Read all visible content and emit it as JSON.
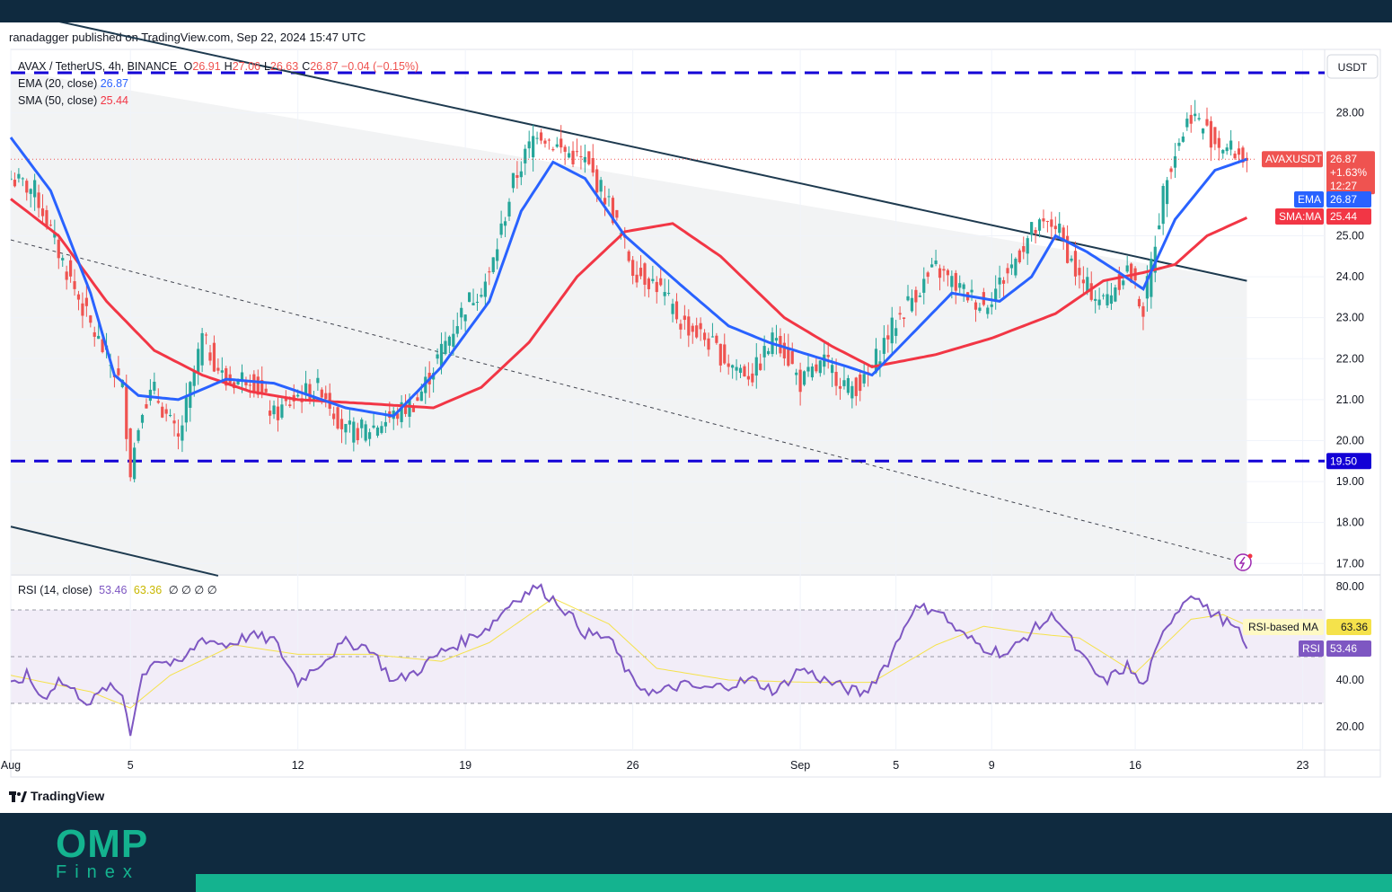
{
  "byline": "ranadagger published on TradingView.com, Sep 22, 2024 15:47 UTC",
  "brand": {
    "tv": "TradingView",
    "omp": "OMP",
    "finex": "Finex"
  },
  "legend": {
    "symbol": "AVAX / TetherUS, 4h, BINANCE",
    "ohlc": [
      {
        "k": "O",
        "v": "26.91"
      },
      {
        "k": "H",
        "v": "27.06"
      },
      {
        "k": "L",
        "v": "26.63"
      },
      {
        "k": "C",
        "v": "26.87"
      }
    ],
    "change": "−0.04 (−0.15%)",
    "ema_label": "EMA (20, close)",
    "ema_value": "26.87",
    "sma_label": "SMA (50, close)",
    "sma_value": "25.44",
    "rsi_label": "RSI (14, close)",
    "rsi_value": "53.46",
    "rsi_ma_value": "63.36",
    "rsi_extra": "∅ ∅ ∅ ∅"
  },
  "axis": {
    "currency": "USDT"
  },
  "badges": {
    "symbol": "AVAXUSDT",
    "price": "26.87",
    "pct": "+1.63%",
    "timer": "12:27",
    "ema_tag": "EMA",
    "ema_val": "26.87",
    "sma_tag": "SMA:MA",
    "sma_val": "25.44",
    "level": "19.50",
    "rsi_ma_tag": "RSI-based MA",
    "rsi_ma_val": "63.36",
    "rsi_tag": "RSI",
    "rsi_val": "53.46"
  },
  "colors": {
    "ema": "#2962ff",
    "sma": "#f23645",
    "rsi": "#7e57c2",
    "rsi_ma": "#f5e24b",
    "bull": "#26a69a",
    "bear": "#ef5350",
    "level": "#1300d6"
  },
  "chart_data": {
    "type": "candlestick",
    "price_ticks": [
      17,
      18,
      19,
      20,
      21,
      22,
      23,
      24,
      25,
      28
    ],
    "price_tick_labels": [
      "17.00",
      "18.00",
      "19.00",
      "20.00",
      "21.00",
      "22.00",
      "23.00",
      "24.00",
      "25.00",
      "28.00"
    ],
    "rsi_ticks": [
      20,
      40,
      60,
      80
    ],
    "rsi_tick_labels": [
      "20.00",
      "40.00",
      "",
      "80.00"
    ],
    "x_labels": [
      "Aug",
      "5",
      "12",
      "19",
      "26",
      "Sep",
      "5",
      "9",
      "16",
      "23"
    ],
    "horizontal_levels": [
      28.98,
      19.5
    ],
    "rsi_bands": [
      30,
      70
    ],
    "close_anchors": [
      [
        0,
        26.4
      ],
      [
        6,
        26.1
      ],
      [
        12,
        24.6
      ],
      [
        20,
        22.8
      ],
      [
        28,
        21.3
      ],
      [
        30,
        19.3
      ],
      [
        33,
        20.9
      ],
      [
        36,
        21.2
      ],
      [
        42,
        20.0
      ],
      [
        48,
        22.5
      ],
      [
        54,
        21.4
      ],
      [
        60,
        21.6
      ],
      [
        66,
        20.6
      ],
      [
        72,
        21.1
      ],
      [
        78,
        21.3
      ],
      [
        84,
        20.2
      ],
      [
        90,
        20.3
      ],
      [
        96,
        20.6
      ],
      [
        102,
        21.0
      ],
      [
        108,
        22.2
      ],
      [
        114,
        23.3
      ],
      [
        120,
        24.0
      ],
      [
        126,
        26.3
      ],
      [
        132,
        27.6
      ],
      [
        138,
        27.1
      ],
      [
        144,
        26.8
      ],
      [
        150,
        25.8
      ],
      [
        156,
        24.2
      ],
      [
        162,
        23.8
      ],
      [
        168,
        22.9
      ],
      [
        174,
        22.5
      ],
      [
        180,
        21.9
      ],
      [
        186,
        21.6
      ],
      [
        192,
        22.6
      ],
      [
        198,
        21.4
      ],
      [
        204,
        21.9
      ],
      [
        210,
        21.3
      ],
      [
        214,
        21.4
      ],
      [
        220,
        22.6
      ],
      [
        226,
        23.5
      ],
      [
        232,
        24.2
      ],
      [
        238,
        23.7
      ],
      [
        244,
        23.3
      ],
      [
        250,
        24.1
      ],
      [
        256,
        25.1
      ],
      [
        262,
        25.3
      ],
      [
        268,
        23.9
      ],
      [
        274,
        23.4
      ],
      [
        280,
        24.2
      ],
      [
        284,
        23.2
      ],
      [
        290,
        26.6
      ],
      [
        296,
        28.0
      ],
      [
        302,
        27.3
      ],
      [
        306,
        27.1
      ],
      [
        310,
        26.87
      ]
    ],
    "ema_anchors": [
      [
        0,
        27.4
      ],
      [
        10,
        26.1
      ],
      [
        20,
        23.6
      ],
      [
        26,
        21.6
      ],
      [
        32,
        21.1
      ],
      [
        42,
        21.0
      ],
      [
        54,
        21.5
      ],
      [
        66,
        21.4
      ],
      [
        84,
        20.8
      ],
      [
        96,
        20.6
      ],
      [
        108,
        21.8
      ],
      [
        120,
        23.4
      ],
      [
        128,
        25.6
      ],
      [
        136,
        26.8
      ],
      [
        144,
        26.4
      ],
      [
        154,
        25.0
      ],
      [
        168,
        23.8
      ],
      [
        180,
        22.8
      ],
      [
        190,
        22.4
      ],
      [
        200,
        22.1
      ],
      [
        210,
        21.8
      ],
      [
        216,
        21.6
      ],
      [
        226,
        22.6
      ],
      [
        236,
        23.6
      ],
      [
        248,
        23.4
      ],
      [
        256,
        24.0
      ],
      [
        262,
        25.0
      ],
      [
        270,
        24.6
      ],
      [
        278,
        24.1
      ],
      [
        284,
        23.7
      ],
      [
        292,
        25.4
      ],
      [
        302,
        26.6
      ],
      [
        310,
        26.87
      ]
    ],
    "sma_anchors": [
      [
        0,
        25.9
      ],
      [
        12,
        25.0
      ],
      [
        24,
        23.4
      ],
      [
        36,
        22.2
      ],
      [
        48,
        21.6
      ],
      [
        60,
        21.2
      ],
      [
        72,
        21.0
      ],
      [
        90,
        20.9
      ],
      [
        106,
        20.8
      ],
      [
        118,
        21.3
      ],
      [
        130,
        22.4
      ],
      [
        142,
        24.0
      ],
      [
        154,
        25.1
      ],
      [
        166,
        25.3
      ],
      [
        178,
        24.5
      ],
      [
        194,
        23.0
      ],
      [
        206,
        22.3
      ],
      [
        216,
        21.8
      ],
      [
        232,
        22.1
      ],
      [
        246,
        22.5
      ],
      [
        262,
        23.1
      ],
      [
        274,
        23.9
      ],
      [
        284,
        24.1
      ],
      [
        292,
        24.3
      ],
      [
        300,
        25.0
      ],
      [
        310,
        25.44
      ]
    ],
    "rsi_anchors": [
      [
        0,
        37
      ],
      [
        4,
        42
      ],
      [
        8,
        32
      ],
      [
        12,
        40
      ],
      [
        16,
        35
      ],
      [
        20,
        30
      ],
      [
        24,
        37
      ],
      [
        28,
        34
      ],
      [
        30,
        18
      ],
      [
        33,
        42
      ],
      [
        36,
        49
      ],
      [
        42,
        46
      ],
      [
        48,
        58
      ],
      [
        54,
        55
      ],
      [
        60,
        59
      ],
      [
        66,
        57
      ],
      [
        72,
        39
      ],
      [
        78,
        48
      ],
      [
        84,
        56
      ],
      [
        90,
        54
      ],
      [
        96,
        39
      ],
      [
        102,
        44
      ],
      [
        108,
        52
      ],
      [
        114,
        57
      ],
      [
        120,
        63
      ],
      [
        126,
        74
      ],
      [
        132,
        80
      ],
      [
        138,
        72
      ],
      [
        144,
        60
      ],
      [
        150,
        58
      ],
      [
        156,
        39
      ],
      [
        162,
        34
      ],
      [
        168,
        38
      ],
      [
        174,
        36
      ],
      [
        180,
        38
      ],
      [
        186,
        40
      ],
      [
        192,
        35
      ],
      [
        198,
        45
      ],
      [
        204,
        40
      ],
      [
        210,
        36
      ],
      [
        214,
        34
      ],
      [
        220,
        48
      ],
      [
        226,
        70
      ],
      [
        232,
        71
      ],
      [
        238,
        60
      ],
      [
        244,
        54
      ],
      [
        250,
        51
      ],
      [
        256,
        61
      ],
      [
        262,
        68
      ],
      [
        268,
        51
      ],
      [
        274,
        39
      ],
      [
        280,
        46
      ],
      [
        284,
        37
      ],
      [
        290,
        64
      ],
      [
        296,
        78
      ],
      [
        300,
        70
      ],
      [
        304,
        66
      ],
      [
        308,
        60
      ],
      [
        310,
        53.46
      ]
    ],
    "rsi_ma_anchors": [
      [
        0,
        42
      ],
      [
        20,
        35
      ],
      [
        30,
        28
      ],
      [
        40,
        42
      ],
      [
        56,
        55
      ],
      [
        72,
        51
      ],
      [
        90,
        51
      ],
      [
        108,
        48
      ],
      [
        120,
        56
      ],
      [
        136,
        75
      ],
      [
        150,
        64
      ],
      [
        162,
        45
      ],
      [
        180,
        40
      ],
      [
        200,
        39
      ],
      [
        216,
        39
      ],
      [
        232,
        55
      ],
      [
        244,
        63
      ],
      [
        256,
        60
      ],
      [
        268,
        58
      ],
      [
        282,
        43
      ],
      [
        296,
        66
      ],
      [
        304,
        68
      ],
      [
        310,
        63.36
      ]
    ],
    "trendline_upper": [
      [
        -10,
        30.7
      ],
      [
        310,
        23.9
      ]
    ],
    "trendline_lower": [
      [
        0,
        17.9
      ],
      [
        52,
        16.7
      ]
    ],
    "trendline_dashed": [
      [
        0,
        24.9
      ],
      [
        310,
        17.0
      ]
    ]
  }
}
